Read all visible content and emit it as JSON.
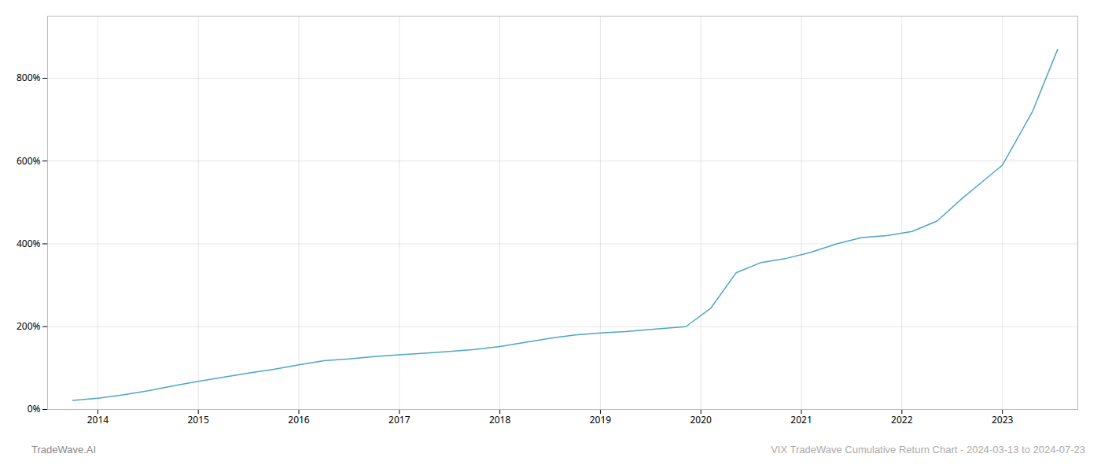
{
  "chart_data": {
    "type": "line",
    "title": "VIX TradeWave Cumulative Return Chart - 2024-03-13 to 2024-07-23",
    "annotations": [
      "TradeWave.AI"
    ],
    "color": "#4da6c8",
    "grid": true,
    "x": [
      2013.75,
      2014.0,
      2014.25,
      2014.5,
      2014.75,
      2015.0,
      2015.25,
      2015.5,
      2015.75,
      2016.0,
      2016.25,
      2016.5,
      2016.75,
      2017.0,
      2017.25,
      2017.5,
      2017.75,
      2018.0,
      2018.25,
      2018.5,
      2018.75,
      2019.0,
      2019.25,
      2019.6,
      2019.85,
      2020.1,
      2020.35,
      2020.6,
      2020.85,
      2021.1,
      2021.35,
      2021.6,
      2021.85,
      2022.1,
      2022.35,
      2022.6,
      2022.85,
      2023.0,
      2023.3,
      2023.55
    ],
    "values": [
      22,
      27,
      35,
      45,
      57,
      68,
      78,
      88,
      97,
      108,
      118,
      122,
      128,
      132,
      136,
      140,
      145,
      152,
      162,
      172,
      180,
      185,
      188,
      195,
      200,
      245,
      330,
      355,
      365,
      380,
      400,
      415,
      420,
      430,
      455,
      510,
      560,
      590,
      720,
      870
    ],
    "xlim": [
      2013.5,
      2023.75
    ],
    "xticks": [
      2014,
      2015,
      2016,
      2017,
      2018,
      2019,
      2020,
      2021,
      2022,
      2023
    ],
    "ylim": [
      0,
      950
    ],
    "yticks": [
      {
        "value": 0,
        "label": "0%"
      },
      {
        "value": 200,
        "label": "200%"
      },
      {
        "value": 400,
        "label": "400%"
      },
      {
        "value": 600,
        "label": "600%"
      },
      {
        "value": 800,
        "label": "800%"
      }
    ]
  }
}
